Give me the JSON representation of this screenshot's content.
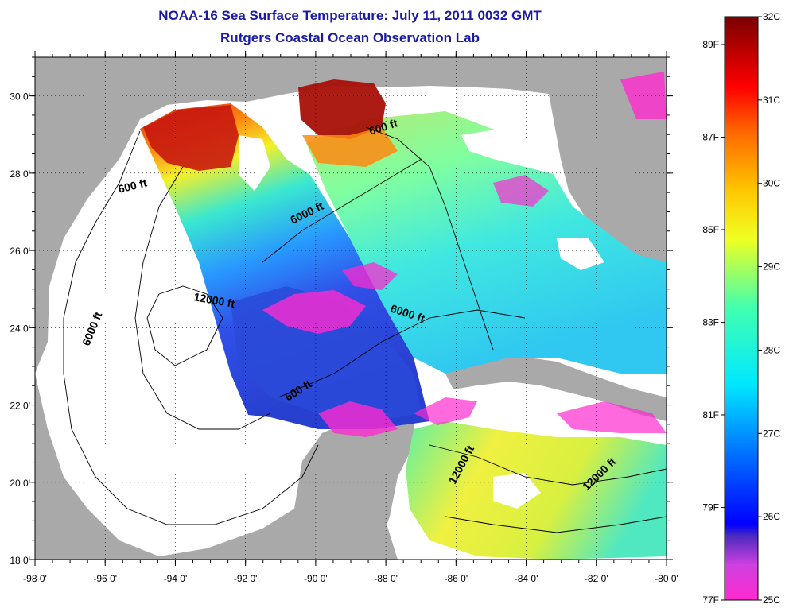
{
  "title": "NOAA-16 Sea Surface Temperature:  July 11, 2011 0032 GMT",
  "subtitle": "Rutgers Coastal Ocean Observation Lab",
  "map": {
    "lon_range": [
      -98,
      -80
    ],
    "lat_range": [
      18,
      31
    ],
    "lon_ticks": [
      {
        "value": -98,
        "label": "-98 0'"
      },
      {
        "value": -96,
        "label": "-96 0'"
      },
      {
        "value": -94,
        "label": "-94 0'"
      },
      {
        "value": -92,
        "label": "-92 0'"
      },
      {
        "value": -90,
        "label": "-90 0'"
      },
      {
        "value": -88,
        "label": "-88 0'"
      },
      {
        "value": -86,
        "label": "-86 0'"
      },
      {
        "value": -84,
        "label": "-84 0'"
      },
      {
        "value": -82,
        "label": "-82 0'"
      },
      {
        "value": -80,
        "label": "-80 0'"
      }
    ],
    "lat_ticks": [
      {
        "value": 18,
        "label": "18 0'"
      },
      {
        "value": 20,
        "label": "20 0'"
      },
      {
        "value": 22,
        "label": "22 0'"
      },
      {
        "value": 24,
        "label": "24 0'"
      },
      {
        "value": 26,
        "label": "26 0'"
      },
      {
        "value": 28,
        "label": "28 0'"
      },
      {
        "value": 30,
        "label": "30 0'"
      }
    ],
    "contour_labels": [
      {
        "text": "600 ft"
      },
      {
        "text": "600 ft"
      },
      {
        "text": "600 ft"
      },
      {
        "text": "6000 ft"
      },
      {
        "text": "6000 ft"
      },
      {
        "text": "6000 ft"
      },
      {
        "text": "12000 ft"
      },
      {
        "text": "12000 ft"
      },
      {
        "text": "12000 ft"
      }
    ],
    "colors": {
      "land": "#a9a9a9",
      "nodata": "#ffffff",
      "contour": "#000000"
    }
  },
  "colorbar": {
    "celsius": [
      {
        "value": 32,
        "label": "32C"
      },
      {
        "value": 31,
        "label": "31C"
      },
      {
        "value": 30,
        "label": "30C"
      },
      {
        "value": 29,
        "label": "29C"
      },
      {
        "value": 28,
        "label": "28C"
      },
      {
        "value": 27,
        "label": "27C"
      },
      {
        "value": 26,
        "label": "26C"
      },
      {
        "value": 25,
        "label": "25C"
      }
    ],
    "fahrenheit": [
      {
        "value": 89,
        "label": "89F"
      },
      {
        "value": 87,
        "label": "87F"
      },
      {
        "value": 85,
        "label": "85F"
      },
      {
        "value": 83,
        "label": "83F"
      },
      {
        "value": 81,
        "label": "81F"
      },
      {
        "value": 79,
        "label": "79F"
      },
      {
        "value": 77,
        "label": "77F"
      }
    ]
  }
}
